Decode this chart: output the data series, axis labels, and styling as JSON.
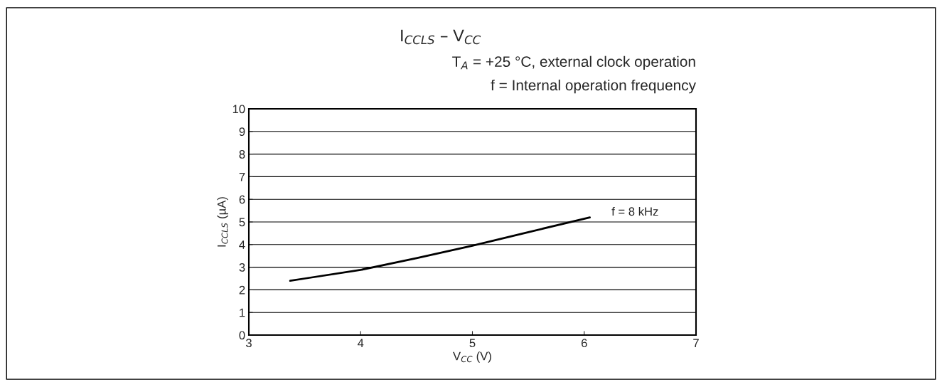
{
  "chart_data": {
    "type": "line",
    "title": "I$_{CCLS}$ – V$_{CC}$",
    "subtitle": "T$_{A}$ = +25 °C, external clock operation\nf = Internal operation frequency",
    "xlabel": "V$_{CC}$ (V)",
    "ylabel": "I$_{CCLS}$ (µA)",
    "x": [
      3.37,
      3.5,
      4.0,
      4.5,
      5.0,
      5.5,
      6.05
    ],
    "series": [
      {
        "color": "#000000",
        "values": [
          2.4,
          2.5,
          2.88,
          3.4,
          3.95,
          4.55,
          5.2
        ]
      }
    ],
    "annotations": [
      {
        "text": "f = 8 kHz",
        "x": 6.05,
        "y": 5.2
      }
    ],
    "xlim": [
      3,
      7
    ],
    "xticks": [
      3,
      4,
      5,
      6,
      7
    ],
    "ylim": [
      0,
      10
    ],
    "yticks": [
      0,
      1,
      2,
      3,
      4,
      5,
      6,
      7,
      8,
      9,
      10
    ],
    "grid": "y",
    "legend": false,
    "marker": "none",
    "line_style": "solid"
  }
}
